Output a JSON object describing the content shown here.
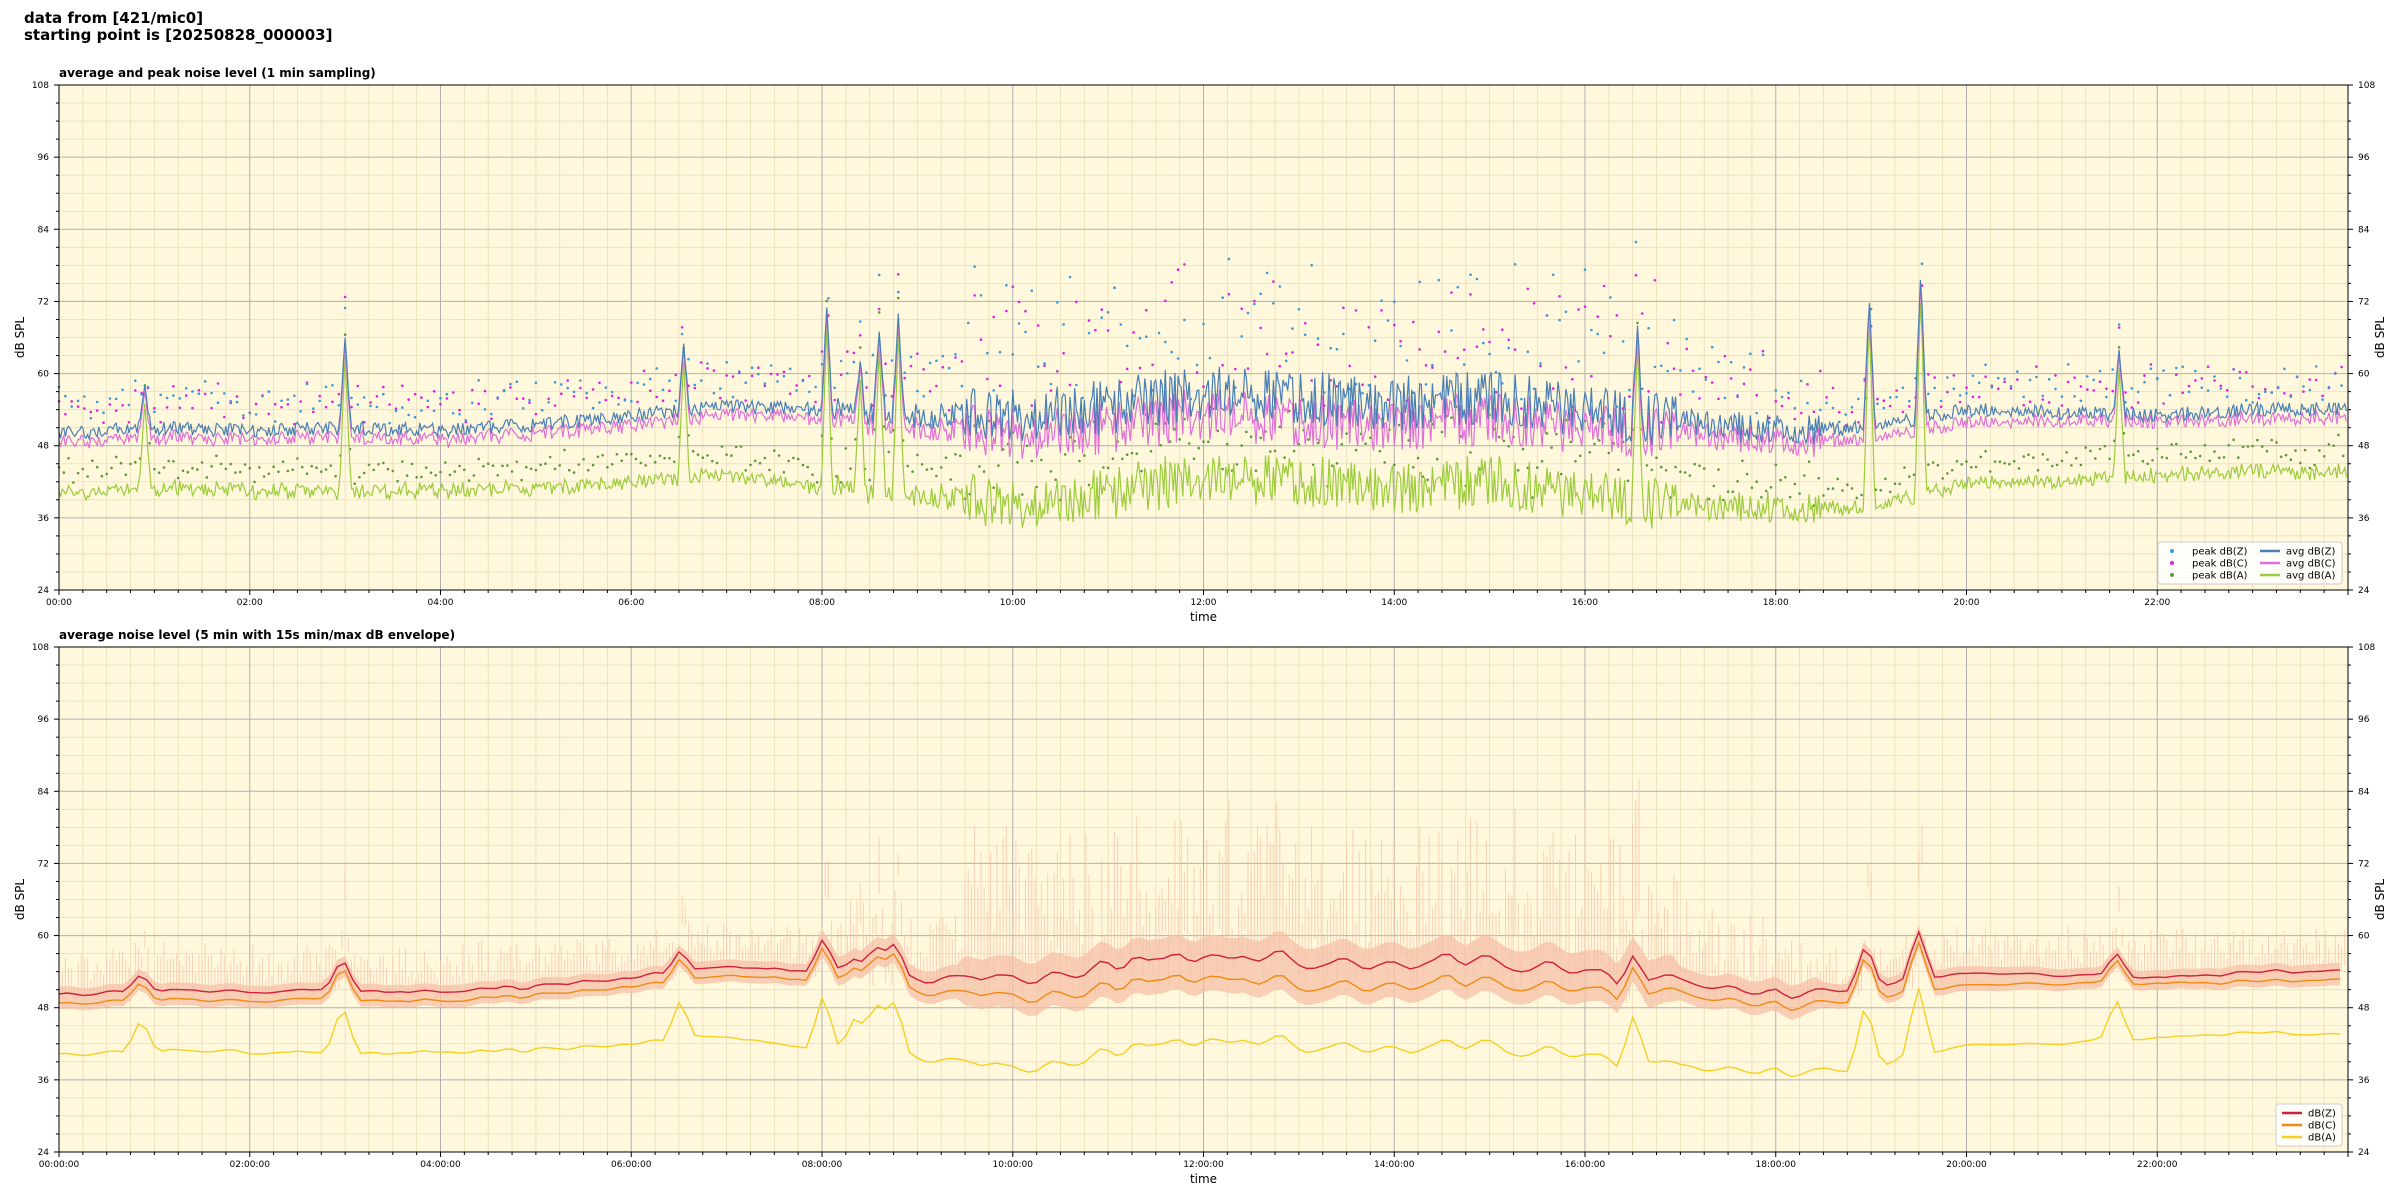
{
  "header": {
    "line1": "data from [421/mic0]",
    "line2": "starting point is [20250828_000003]"
  },
  "chart_data": [
    {
      "type": "line",
      "title": "average and peak noise level (1 min sampling)",
      "xlabel": "time",
      "ylabel": "dB SPL",
      "ylim": [
        24,
        108
      ],
      "yticks": [
        "24",
        "36",
        "48",
        "60",
        "72",
        "84",
        "96",
        "108"
      ],
      "xlim_hours": [
        0,
        24
      ],
      "xticks": [
        "00:00",
        "02:00",
        "04:00",
        "06:00",
        "08:00",
        "10:00",
        "12:00",
        "14:00",
        "16:00",
        "18:00",
        "20:00",
        "22:00"
      ],
      "grid": true,
      "legend_placement": "bottom-right",
      "colors": {
        "background": "#fff8dc",
        "z": "#4a7fb5",
        "c": "#e070d8",
        "a": "#9ccc3c",
        "peak_z": "#3a9ad9",
        "peak_c": "#e020e0",
        "peak_a": "#5a9a3a"
      },
      "series": [
        {
          "name": "peak dB(Z)",
          "kind": "scatter"
        },
        {
          "name": "peak dB(C)",
          "kind": "scatter"
        },
        {
          "name": "peak dB(A)",
          "kind": "scatter"
        },
        {
          "name": "avg dB(Z)",
          "kind": "line"
        },
        {
          "name": "avg dB(C)",
          "kind": "line"
        },
        {
          "name": "avg dB(A)",
          "kind": "line"
        }
      ],
      "avg_profile_hours": [
        0,
        1,
        2,
        3,
        4,
        5,
        6,
        7,
        8,
        9,
        10,
        11,
        12,
        13,
        14,
        15,
        16,
        17,
        18,
        19,
        20,
        21,
        22,
        23,
        24
      ],
      "avg_z_profile": [
        50,
        51,
        50.5,
        51,
        50.5,
        51.5,
        53,
        54.5,
        54,
        53,
        53,
        54.5,
        57,
        56,
        55,
        56,
        54,
        52,
        50.5,
        51,
        54,
        53.5,
        53,
        54,
        54
      ],
      "avg_c_profile": [
        48.5,
        49.5,
        49,
        49.5,
        49,
        50,
        51.5,
        53,
        52.5,
        51,
        50,
        51,
        53.5,
        52,
        51.5,
        52.5,
        51,
        50,
        48.5,
        49,
        52,
        52,
        52,
        52.5,
        52.5
      ],
      "avg_a_profile": [
        40,
        41,
        40.5,
        40.5,
        40.5,
        41,
        42,
        43,
        41,
        40,
        38,
        40,
        43,
        42,
        41,
        42,
        40,
        38,
        37.5,
        37.5,
        42,
        42,
        43,
        44,
        43.5
      ],
      "spikes_hours": [
        0.9,
        3.0,
        6.55,
        8.05,
        8.4,
        8.6,
        8.8,
        16.55,
        18.98,
        19.52,
        21.6
      ],
      "spike_peak_db": [
        58,
        66,
        65,
        71,
        62,
        67,
        70,
        68,
        73,
        77,
        64
      ]
    },
    {
      "type": "line",
      "title": "average noise level (5 min with 15s min/max dB envelope)",
      "xlabel": "time",
      "ylabel": "dB SPL",
      "ylim": [
        24,
        108
      ],
      "yticks": [
        "24",
        "36",
        "48",
        "60",
        "72",
        "84",
        "96",
        "108"
      ],
      "xlim_hours": [
        0,
        24
      ],
      "xticks": [
        "00:00:00",
        "02:00:00",
        "04:00:00",
        "06:00:00",
        "08:00:00",
        "10:00:00",
        "12:00:00",
        "14:00:00",
        "16:00:00",
        "18:00:00",
        "20:00:00",
        "22:00:00"
      ],
      "grid": true,
      "legend_placement": "bottom-right",
      "colors": {
        "background": "#fff8dc",
        "z": "#d0203c",
        "c": "#f08a10",
        "a": "#f5d020",
        "envelope": "#f5c0a8"
      },
      "series": [
        {
          "name": "dB(Z)",
          "kind": "line"
        },
        {
          "name": "dB(C)",
          "kind": "line"
        },
        {
          "name": "dB(A)",
          "kind": "line"
        }
      ]
    }
  ]
}
